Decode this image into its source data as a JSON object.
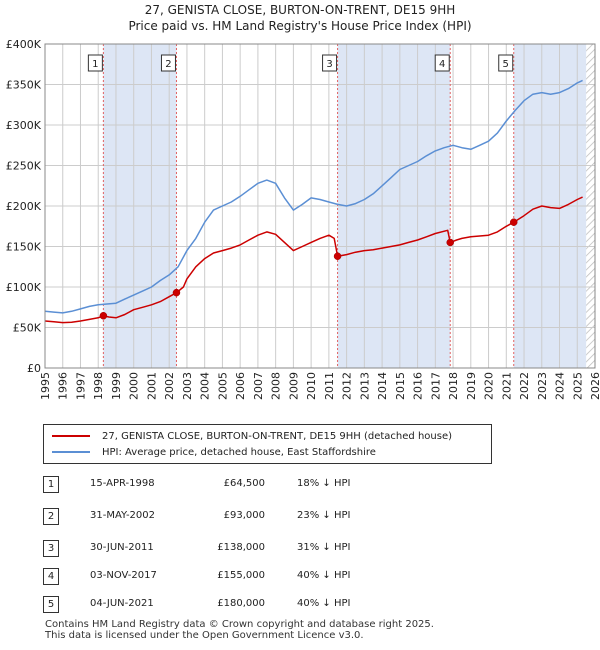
{
  "title_line1": "27, GENISTA CLOSE, BURTON-ON-TRENT, DE15 9HH",
  "title_line2": "Price paid vs. HM Land Registry's House Price Index (HPI)",
  "colors": {
    "property": "#cc0000",
    "hpi": "#5b8fd4",
    "shade": "#dde6f5",
    "grid": "#cccccc"
  },
  "chart_data": {
    "type": "line",
    "x_range": [
      1995,
      2026
    ],
    "ylim": [
      0,
      400000
    ],
    "y_ticks": [
      0,
      50000,
      100000,
      150000,
      200000,
      250000,
      300000,
      350000,
      400000
    ],
    "y_tick_labels": [
      "£0",
      "£50K",
      "£100K",
      "£150K",
      "£200K",
      "£250K",
      "£300K",
      "£350K",
      "£400K"
    ],
    "x_ticks": [
      1995,
      1996,
      1997,
      1998,
      1999,
      2000,
      2001,
      2002,
      2003,
      2004,
      2005,
      2006,
      2007,
      2008,
      2009,
      2010,
      2011,
      2012,
      2013,
      2014,
      2015,
      2016,
      2017,
      2018,
      2019,
      2020,
      2021,
      2022,
      2023,
      2024,
      2025,
      2026
    ],
    "x_tick_labels": [
      "1995",
      "1996",
      "1997",
      "1998",
      "1999",
      "2000",
      "2001",
      "2002",
      "2003",
      "2004",
      "2005",
      "2006",
      "2007",
      "2008",
      "2009",
      "2010",
      "2011",
      "2012",
      "2013",
      "2014",
      "2015",
      "2016",
      "2017",
      "2018",
      "2019",
      "2020",
      "2021",
      "2022",
      "2023",
      "2024",
      "2025",
      "2026"
    ],
    "shaded_periods": [
      [
        1998.29,
        2002.41
      ],
      [
        2011.49,
        2017.84
      ],
      [
        2021.42,
        2025.5
      ]
    ],
    "hatched_after": 2025.5,
    "series": [
      {
        "name": "27, GENISTA CLOSE, BURTON-ON-TRENT, DE15 9HH (detached house)",
        "points": [
          [
            1995.0,
            58000
          ],
          [
            1995.5,
            57000
          ],
          [
            1996.0,
            56000
          ],
          [
            1996.5,
            56500
          ],
          [
            1997.0,
            58000
          ],
          [
            1997.5,
            60000
          ],
          [
            1998.0,
            62000
          ],
          [
            1998.29,
            64500
          ],
          [
            1998.6,
            63000
          ],
          [
            1999.0,
            62000
          ],
          [
            1999.5,
            66000
          ],
          [
            2000.0,
            72000
          ],
          [
            2000.5,
            75000
          ],
          [
            2001.0,
            78000
          ],
          [
            2001.5,
            82000
          ],
          [
            2002.0,
            88000
          ],
          [
            2002.41,
            93000
          ],
          [
            2002.8,
            100000
          ],
          [
            2003.0,
            110000
          ],
          [
            2003.5,
            125000
          ],
          [
            2004.0,
            135000
          ],
          [
            2004.5,
            142000
          ],
          [
            2005.0,
            145000
          ],
          [
            2005.5,
            148000
          ],
          [
            2006.0,
            152000
          ],
          [
            2006.5,
            158000
          ],
          [
            2007.0,
            164000
          ],
          [
            2007.5,
            168000
          ],
          [
            2008.0,
            165000
          ],
          [
            2008.5,
            155000
          ],
          [
            2009.0,
            145000
          ],
          [
            2009.5,
            150000
          ],
          [
            2010.0,
            155000
          ],
          [
            2010.5,
            160000
          ],
          [
            2011.0,
            164000
          ],
          [
            2011.3,
            160000
          ],
          [
            2011.49,
            138000
          ],
          [
            2012.0,
            140000
          ],
          [
            2012.5,
            143000
          ],
          [
            2013.0,
            145000
          ],
          [
            2013.5,
            146000
          ],
          [
            2014.0,
            148000
          ],
          [
            2014.5,
            150000
          ],
          [
            2015.0,
            152000
          ],
          [
            2015.5,
            155000
          ],
          [
            2016.0,
            158000
          ],
          [
            2016.5,
            162000
          ],
          [
            2017.0,
            166000
          ],
          [
            2017.7,
            170000
          ],
          [
            2017.84,
            155000
          ],
          [
            2018.2,
            158000
          ],
          [
            2018.5,
            160000
          ],
          [
            2019.0,
            162000
          ],
          [
            2019.5,
            163000
          ],
          [
            2020.0,
            164000
          ],
          [
            2020.5,
            168000
          ],
          [
            2021.0,
            175000
          ],
          [
            2021.42,
            180000
          ],
          [
            2022.0,
            188000
          ],
          [
            2022.5,
            196000
          ],
          [
            2023.0,
            200000
          ],
          [
            2023.5,
            198000
          ],
          [
            2024.0,
            197000
          ],
          [
            2024.5,
            202000
          ],
          [
            2025.0,
            208000
          ],
          [
            2025.3,
            211000
          ]
        ]
      },
      {
        "name": "HPI: Average price, detached house, East Staffordshire",
        "points": [
          [
            1995.0,
            70000
          ],
          [
            1995.5,
            69000
          ],
          [
            1996.0,
            68000
          ],
          [
            1996.5,
            70000
          ],
          [
            1997.0,
            73000
          ],
          [
            1997.5,
            76000
          ],
          [
            1998.0,
            78000
          ],
          [
            1998.5,
            79000
          ],
          [
            1999.0,
            80000
          ],
          [
            1999.5,
            85000
          ],
          [
            2000.0,
            90000
          ],
          [
            2000.5,
            95000
          ],
          [
            2001.0,
            100000
          ],
          [
            2001.5,
            108000
          ],
          [
            2002.0,
            115000
          ],
          [
            2002.5,
            125000
          ],
          [
            2003.0,
            145000
          ],
          [
            2003.5,
            160000
          ],
          [
            2004.0,
            180000
          ],
          [
            2004.5,
            195000
          ],
          [
            2005.0,
            200000
          ],
          [
            2005.5,
            205000
          ],
          [
            2006.0,
            212000
          ],
          [
            2006.5,
            220000
          ],
          [
            2007.0,
            228000
          ],
          [
            2007.5,
            232000
          ],
          [
            2008.0,
            228000
          ],
          [
            2008.5,
            210000
          ],
          [
            2009.0,
            195000
          ],
          [
            2009.5,
            202000
          ],
          [
            2010.0,
            210000
          ],
          [
            2010.5,
            208000
          ],
          [
            2011.0,
            205000
          ],
          [
            2011.5,
            202000
          ],
          [
            2012.0,
            200000
          ],
          [
            2012.5,
            203000
          ],
          [
            2013.0,
            208000
          ],
          [
            2013.5,
            215000
          ],
          [
            2014.0,
            225000
          ],
          [
            2014.5,
            235000
          ],
          [
            2015.0,
            245000
          ],
          [
            2015.5,
            250000
          ],
          [
            2016.0,
            255000
          ],
          [
            2016.5,
            262000
          ],
          [
            2017.0,
            268000
          ],
          [
            2017.5,
            272000
          ],
          [
            2018.0,
            275000
          ],
          [
            2018.5,
            272000
          ],
          [
            2019.0,
            270000
          ],
          [
            2019.5,
            275000
          ],
          [
            2020.0,
            280000
          ],
          [
            2020.5,
            290000
          ],
          [
            2021.0,
            305000
          ],
          [
            2021.5,
            318000
          ],
          [
            2022.0,
            330000
          ],
          [
            2022.5,
            338000
          ],
          [
            2023.0,
            340000
          ],
          [
            2023.5,
            338000
          ],
          [
            2024.0,
            340000
          ],
          [
            2024.5,
            345000
          ],
          [
            2025.0,
            352000
          ],
          [
            2025.3,
            355000
          ]
        ]
      }
    ],
    "sales": [
      {
        "label": "1",
        "x": 1998.29,
        "price": 64500
      },
      {
        "label": "2",
        "x": 2002.41,
        "price": 93000
      },
      {
        "label": "3",
        "x": 2011.49,
        "price": 138000
      },
      {
        "label": "4",
        "x": 2017.84,
        "price": 155000
      },
      {
        "label": "5",
        "x": 2021.42,
        "price": 180000
      }
    ]
  },
  "legend": {
    "property": "27, GENISTA CLOSE, BURTON-ON-TRENT, DE15 9HH (detached house)",
    "hpi": "HPI: Average price, detached house, East Staffordshire"
  },
  "transactions": [
    {
      "num": "1",
      "date": "15-APR-1998",
      "price": "£64,500",
      "hpi": "18% ↓ HPI"
    },
    {
      "num": "2",
      "date": "31-MAY-2002",
      "price": "£93,000",
      "hpi": "23% ↓ HPI"
    },
    {
      "num": "3",
      "date": "30-JUN-2011",
      "price": "£138,000",
      "hpi": "31% ↓ HPI"
    },
    {
      "num": "4",
      "date": "03-NOV-2017",
      "price": "£155,000",
      "hpi": "40% ↓ HPI"
    },
    {
      "num": "5",
      "date": "04-JUN-2021",
      "price": "£180,000",
      "hpi": "40% ↓ HPI"
    }
  ],
  "footer_line1": "Contains HM Land Registry data © Crown copyright and database right 2025.",
  "footer_line2": "This data is licensed under the Open Government Licence v3.0."
}
